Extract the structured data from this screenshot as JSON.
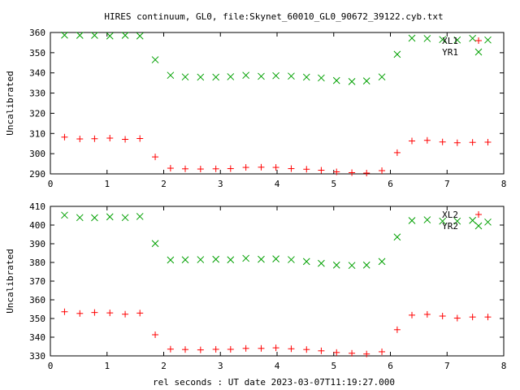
{
  "chart_data": [
    {
      "type": "scatter",
      "title": "HIRES continuum, GL0, file:Skynet_60010_GL0_90672_39122.cyb.txt",
      "xlabel": "",
      "ylabel": "Uncalibrated",
      "xlim": [
        0,
        8
      ],
      "ylim": [
        290,
        360
      ],
      "xticks": [
        0,
        1,
        2,
        3,
        4,
        5,
        6,
        7,
        8
      ],
      "yticks": [
        290,
        300,
        310,
        320,
        330,
        340,
        350,
        360
      ],
      "legend": "top-right",
      "x": [
        0.25,
        0.52,
        0.78,
        1.05,
        1.32,
        1.58,
        1.85,
        2.12,
        2.38,
        2.65,
        2.92,
        3.18,
        3.45,
        3.72,
        3.98,
        4.25,
        4.52,
        4.78,
        5.05,
        5.32,
        5.58,
        5.85,
        6.12,
        6.38,
        6.65,
        6.92,
        7.18,
        7.45,
        7.72
      ],
      "series": [
        {
          "name": "XL1",
          "marker": "plus",
          "color": "#ff0000",
          "values": [
            308.2,
            307.3,
            307.4,
            307.7,
            307.1,
            307.5,
            298.4,
            292.8,
            292.5,
            292.4,
            292.5,
            292.6,
            293.2,
            293.3,
            293.2,
            292.6,
            292.3,
            291.8,
            291.0,
            290.6,
            290.4,
            291.6,
            300.5,
            306.3,
            306.6,
            305.8,
            305.4,
            305.6,
            305.7
          ]
        },
        {
          "name": "YR1",
          "marker": "cross",
          "color": "#00a000",
          "values": [
            358.7,
            358.6,
            358.6,
            358.3,
            358.6,
            358.3,
            346.5,
            338.8,
            338.0,
            337.9,
            337.9,
            338.1,
            338.8,
            338.3,
            338.6,
            338.4,
            337.9,
            337.5,
            336.2,
            335.7,
            336.0,
            338.0,
            349.2,
            357.2,
            357.0,
            356.5,
            356.3,
            357.1,
            356.3
          ]
        }
      ]
    },
    {
      "type": "scatter",
      "title": "",
      "xlabel": "rel seconds : UT date 2023-03-07T11:19:27.000",
      "ylabel": "Uncalibrated",
      "xlim": [
        0,
        8
      ],
      "ylim": [
        330,
        410
      ],
      "xticks": [
        0,
        1,
        2,
        3,
        4,
        5,
        6,
        7,
        8
      ],
      "yticks": [
        330,
        340,
        350,
        360,
        370,
        380,
        390,
        400,
        410
      ],
      "legend": "top-right",
      "x": [
        0.25,
        0.52,
        0.78,
        1.05,
        1.32,
        1.58,
        1.85,
        2.12,
        2.38,
        2.65,
        2.92,
        3.18,
        3.45,
        3.72,
        3.98,
        4.25,
        4.52,
        4.78,
        5.05,
        5.32,
        5.58,
        5.85,
        6.12,
        6.38,
        6.65,
        6.92,
        7.18,
        7.45,
        7.72
      ],
      "series": [
        {
          "name": "XL2",
          "marker": "plus",
          "color": "#ff0000",
          "values": [
            353.6,
            352.7,
            353.2,
            353.0,
            352.3,
            352.9,
            341.3,
            333.6,
            333.4,
            333.2,
            333.5,
            333.5,
            334.0,
            334.0,
            334.3,
            333.8,
            333.4,
            332.7,
            331.8,
            331.4,
            331.0,
            332.2,
            344.0,
            351.8,
            352.2,
            351.3,
            350.2,
            350.8,
            350.8
          ]
        },
        {
          "name": "YR2",
          "marker": "cross",
          "color": "#00a000",
          "values": [
            405.3,
            404.0,
            403.9,
            404.4,
            404.0,
            404.6,
            390.1,
            381.3,
            381.4,
            381.5,
            381.7,
            381.4,
            382.2,
            381.7,
            381.9,
            381.5,
            380.5,
            379.5,
            378.6,
            378.4,
            378.6,
            380.5,
            393.6,
            402.4,
            402.8,
            402.1,
            402.1,
            402.5,
            401.6
          ]
        }
      ]
    }
  ]
}
